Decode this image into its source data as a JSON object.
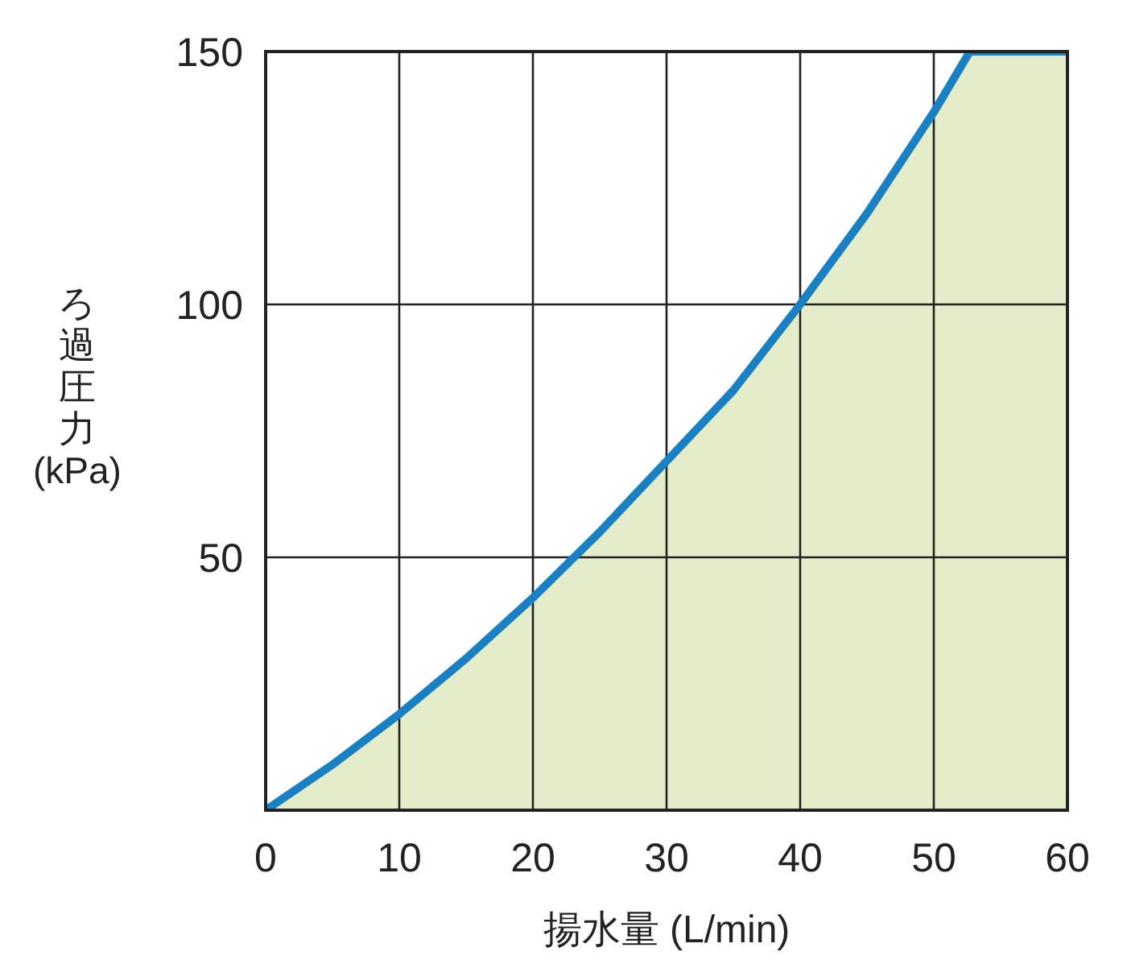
{
  "chart_data": {
    "type": "area",
    "xlabel": "揚水量 (L/min)",
    "ylabel": "ろ過圧力(kPa)",
    "x": [
      0,
      5,
      10,
      15,
      20,
      25,
      30,
      35,
      40,
      45,
      50,
      52.7,
      60
    ],
    "series": [
      {
        "color": "#1a80c4",
        "values": [
          0,
          9,
          19,
          30,
          42,
          55,
          69,
          83,
          100,
          118,
          138,
          150,
          150
        ]
      }
    ],
    "xlim": [
      0,
      60
    ],
    "ylim": [
      0,
      150
    ],
    "xticks": [
      0,
      10,
      20,
      30,
      40,
      50,
      60
    ],
    "yticks": [
      50,
      100,
      150
    ],
    "grid": true
  }
}
